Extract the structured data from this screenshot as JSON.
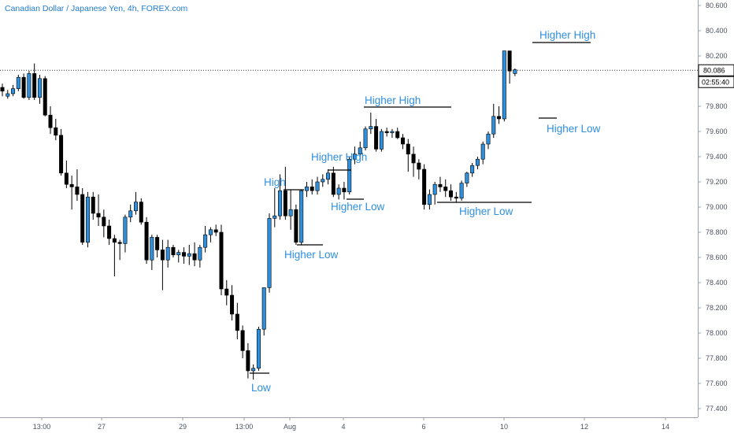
{
  "header": {
    "title": "Canadian Dollar / Japanese Yen, 4h, FOREX.com"
  },
  "chart_data": {
    "type": "candlestick",
    "symbol": "Canadian Dollar / Japanese Yen",
    "interval": "4h",
    "source": "FOREX.com",
    "ylim": [
      77.35,
      80.65
    ],
    "y_ticks": [
      "80.600",
      "80.400",
      "80.200",
      "80.000",
      "79.800",
      "79.600",
      "79.400",
      "79.200",
      "79.000",
      "78.800",
      "78.600",
      "78.400",
      "78.200",
      "78.000",
      "77.800",
      "77.600",
      "77.400"
    ],
    "x_ticks": [
      "13:00",
      "27",
      "29",
      "13:00",
      "Aug",
      "4",
      "6",
      "10",
      "12",
      "14"
    ],
    "last_price": "80.086",
    "countdown": "02:55:40",
    "colors": {
      "up": "#2e8fdc",
      "down": "#000000",
      "accent": "#2f8fe0",
      "axis_text": "#4a5260"
    },
    "candles": [
      {
        "o": 79.95,
        "h": 79.98,
        "l": 79.88,
        "c": 79.92
      },
      {
        "o": 79.88,
        "h": 79.93,
        "l": 79.86,
        "c": 79.9
      },
      {
        "o": 79.9,
        "h": 79.97,
        "l": 79.88,
        "c": 79.94
      },
      {
        "o": 79.94,
        "h": 80.05,
        "l": 79.92,
        "c": 80.03
      },
      {
        "o": 80.03,
        "h": 80.06,
        "l": 79.86,
        "c": 79.87
      },
      {
        "o": 79.87,
        "h": 80.08,
        "l": 79.85,
        "c": 80.06
      },
      {
        "o": 80.06,
        "h": 80.14,
        "l": 79.85,
        "c": 79.87
      },
      {
        "o": 79.87,
        "h": 80.05,
        "l": 79.82,
        "c": 80.02
      },
      {
        "o": 80.02,
        "h": 80.04,
        "l": 79.72,
        "c": 79.73
      },
      {
        "o": 79.73,
        "h": 79.8,
        "l": 79.58,
        "c": 79.63
      },
      {
        "o": 79.63,
        "h": 79.7,
        "l": 79.53,
        "c": 79.57
      },
      {
        "o": 79.57,
        "h": 79.62,
        "l": 79.25,
        "c": 79.27
      },
      {
        "o": 79.27,
        "h": 79.37,
        "l": 79.15,
        "c": 79.18
      },
      {
        "o": 79.18,
        "h": 79.25,
        "l": 78.98,
        "c": 79.16
      },
      {
        "o": 79.16,
        "h": 79.3,
        "l": 79.05,
        "c": 79.1
      },
      {
        "o": 79.1,
        "h": 79.15,
        "l": 78.7,
        "c": 78.72
      },
      {
        "o": 78.72,
        "h": 79.12,
        "l": 78.68,
        "c": 79.08
      },
      {
        "o": 79.08,
        "h": 79.12,
        "l": 78.9,
        "c": 78.95
      },
      {
        "o": 78.95,
        "h": 79.1,
        "l": 78.85,
        "c": 78.92
      },
      {
        "o": 78.92,
        "h": 78.98,
        "l": 78.76,
        "c": 78.85
      },
      {
        "o": 78.85,
        "h": 78.9,
        "l": 78.7,
        "c": 78.75
      },
      {
        "o": 78.75,
        "h": 78.78,
        "l": 78.45,
        "c": 78.72
      },
      {
        "o": 78.72,
        "h": 78.74,
        "l": 78.58,
        "c": 78.71
      },
      {
        "o": 78.71,
        "h": 78.94,
        "l": 78.64,
        "c": 78.92
      },
      {
        "o": 78.92,
        "h": 79.02,
        "l": 78.88,
        "c": 78.97
      },
      {
        "o": 78.97,
        "h": 79.12,
        "l": 78.94,
        "c": 79.04
      },
      {
        "o": 79.04,
        "h": 79.07,
        "l": 78.86,
        "c": 78.88
      },
      {
        "o": 78.88,
        "h": 78.92,
        "l": 78.55,
        "c": 78.58
      },
      {
        "o": 78.58,
        "h": 78.78,
        "l": 78.5,
        "c": 78.76
      },
      {
        "o": 78.76,
        "h": 78.78,
        "l": 78.6,
        "c": 78.66
      },
      {
        "o": 78.66,
        "h": 78.74,
        "l": 78.34,
        "c": 78.58
      },
      {
        "o": 78.58,
        "h": 78.74,
        "l": 78.52,
        "c": 78.68
      },
      {
        "o": 78.68,
        "h": 78.7,
        "l": 78.6,
        "c": 78.62
      },
      {
        "o": 78.62,
        "h": 78.66,
        "l": 78.56,
        "c": 78.64
      },
      {
        "o": 78.64,
        "h": 78.68,
        "l": 78.55,
        "c": 78.61
      },
      {
        "o": 78.61,
        "h": 78.7,
        "l": 78.54,
        "c": 78.63
      },
      {
        "o": 78.63,
        "h": 78.72,
        "l": 78.53,
        "c": 78.58
      },
      {
        "o": 78.58,
        "h": 78.7,
        "l": 78.52,
        "c": 78.68
      },
      {
        "o": 78.68,
        "h": 78.85,
        "l": 78.64,
        "c": 78.78
      },
      {
        "o": 78.78,
        "h": 78.84,
        "l": 78.72,
        "c": 78.82
      },
      {
        "o": 78.82,
        "h": 78.86,
        "l": 78.77,
        "c": 78.8
      },
      {
        "o": 78.8,
        "h": 78.86,
        "l": 78.3,
        "c": 78.35
      },
      {
        "o": 78.35,
        "h": 78.42,
        "l": 78.22,
        "c": 78.3
      },
      {
        "o": 78.3,
        "h": 78.38,
        "l": 78.1,
        "c": 78.15
      },
      {
        "o": 78.15,
        "h": 78.24,
        "l": 77.95,
        "c": 78.02
      },
      {
        "o": 78.02,
        "h": 78.06,
        "l": 77.8,
        "c": 77.86
      },
      {
        "o": 77.86,
        "h": 77.92,
        "l": 77.64,
        "c": 77.7
      },
      {
        "o": 77.7,
        "h": 77.75,
        "l": 77.63,
        "c": 77.72
      },
      {
        "o": 77.72,
        "h": 78.05,
        "l": 77.7,
        "c": 78.03
      },
      {
        "o": 78.03,
        "h": 78.36,
        "l": 77.98,
        "c": 78.36
      },
      {
        "o": 78.36,
        "h": 78.95,
        "l": 78.32,
        "c": 78.91
      },
      {
        "o": 78.91,
        "h": 79.15,
        "l": 78.84,
        "c": 78.93
      },
      {
        "o": 78.93,
        "h": 79.26,
        "l": 78.9,
        "c": 79.13
      },
      {
        "o": 79.13,
        "h": 79.32,
        "l": 78.9,
        "c": 78.93
      },
      {
        "o": 78.93,
        "h": 79.14,
        "l": 78.82,
        "c": 78.98
      },
      {
        "o": 78.98,
        "h": 79.02,
        "l": 78.7,
        "c": 78.72
      },
      {
        "o": 78.72,
        "h": 79.14,
        "l": 78.7,
        "c": 79.13
      },
      {
        "o": 79.13,
        "h": 79.2,
        "l": 79.08,
        "c": 79.16
      },
      {
        "o": 79.16,
        "h": 79.22,
        "l": 79.1,
        "c": 79.13
      },
      {
        "o": 79.13,
        "h": 79.24,
        "l": 79.1,
        "c": 79.2
      },
      {
        "o": 79.2,
        "h": 79.26,
        "l": 79.16,
        "c": 79.22
      },
      {
        "o": 79.22,
        "h": 79.3,
        "l": 79.18,
        "c": 79.27
      },
      {
        "o": 79.27,
        "h": 79.32,
        "l": 79.08,
        "c": 79.1
      },
      {
        "o": 79.1,
        "h": 79.18,
        "l": 79.06,
        "c": 79.15
      },
      {
        "o": 79.15,
        "h": 79.2,
        "l": 79.06,
        "c": 79.12
      },
      {
        "o": 79.12,
        "h": 79.4,
        "l": 79.1,
        "c": 79.38
      },
      {
        "o": 79.38,
        "h": 79.48,
        "l": 79.34,
        "c": 79.42
      },
      {
        "o": 79.42,
        "h": 79.52,
        "l": 79.38,
        "c": 79.47
      },
      {
        "o": 79.47,
        "h": 79.64,
        "l": 79.45,
        "c": 79.62
      },
      {
        "o": 79.62,
        "h": 79.75,
        "l": 79.58,
        "c": 79.64
      },
      {
        "o": 79.64,
        "h": 79.7,
        "l": 79.44,
        "c": 79.46
      },
      {
        "o": 79.46,
        "h": 79.62,
        "l": 79.44,
        "c": 79.6
      },
      {
        "o": 79.6,
        "h": 79.63,
        "l": 79.56,
        "c": 79.59
      },
      {
        "o": 79.59,
        "h": 79.62,
        "l": 79.55,
        "c": 79.6
      },
      {
        "o": 79.6,
        "h": 79.63,
        "l": 79.54,
        "c": 79.55
      },
      {
        "o": 79.55,
        "h": 79.58,
        "l": 79.46,
        "c": 79.5
      },
      {
        "o": 79.5,
        "h": 79.54,
        "l": 79.28,
        "c": 79.42
      },
      {
        "o": 79.42,
        "h": 79.48,
        "l": 79.24,
        "c": 79.35
      },
      {
        "o": 79.35,
        "h": 79.38,
        "l": 79.22,
        "c": 79.3
      },
      {
        "o": 79.3,
        "h": 79.34,
        "l": 78.98,
        "c": 79.02
      },
      {
        "o": 79.02,
        "h": 79.14,
        "l": 78.98,
        "c": 79.1
      },
      {
        "o": 79.1,
        "h": 79.2,
        "l": 79.02,
        "c": 79.18
      },
      {
        "o": 79.18,
        "h": 79.24,
        "l": 79.12,
        "c": 79.16
      },
      {
        "o": 79.16,
        "h": 79.22,
        "l": 79.08,
        "c": 79.13
      },
      {
        "o": 79.13,
        "h": 79.18,
        "l": 79.05,
        "c": 79.08
      },
      {
        "o": 79.08,
        "h": 79.12,
        "l": 79.04,
        "c": 79.07
      },
      {
        "o": 79.07,
        "h": 79.21,
        "l": 79.05,
        "c": 79.19
      },
      {
        "o": 79.19,
        "h": 79.28,
        "l": 79.16,
        "c": 79.27
      },
      {
        "o": 79.27,
        "h": 79.35,
        "l": 79.24,
        "c": 79.33
      },
      {
        "o": 79.33,
        "h": 79.4,
        "l": 79.3,
        "c": 79.38
      },
      {
        "o": 79.38,
        "h": 79.52,
        "l": 79.34,
        "c": 79.5
      },
      {
        "o": 79.5,
        "h": 79.6,
        "l": 79.46,
        "c": 79.58
      },
      {
        "o": 79.58,
        "h": 79.82,
        "l": 79.55,
        "c": 79.72
      },
      {
        "o": 79.72,
        "h": 79.8,
        "l": 79.66,
        "c": 79.7
      },
      {
        "o": 79.7,
        "h": 80.24,
        "l": 79.68,
        "c": 80.24
      },
      {
        "o": 80.24,
        "h": 80.24,
        "l": 79.98,
        "c": 80.08
      },
      {
        "o": 80.06,
        "h": 80.1,
        "l": 80.04,
        "c": 80.09
      }
    ],
    "annotations": [
      {
        "text": "Low"
      },
      {
        "text": "High"
      },
      {
        "text": "Higher Low"
      },
      {
        "text": "Higher High"
      },
      {
        "text": "Higher Low"
      },
      {
        "text": "Higher High"
      },
      {
        "text": "Higher Low"
      },
      {
        "text": "Higher Low"
      },
      {
        "text": "Higher High"
      }
    ]
  }
}
